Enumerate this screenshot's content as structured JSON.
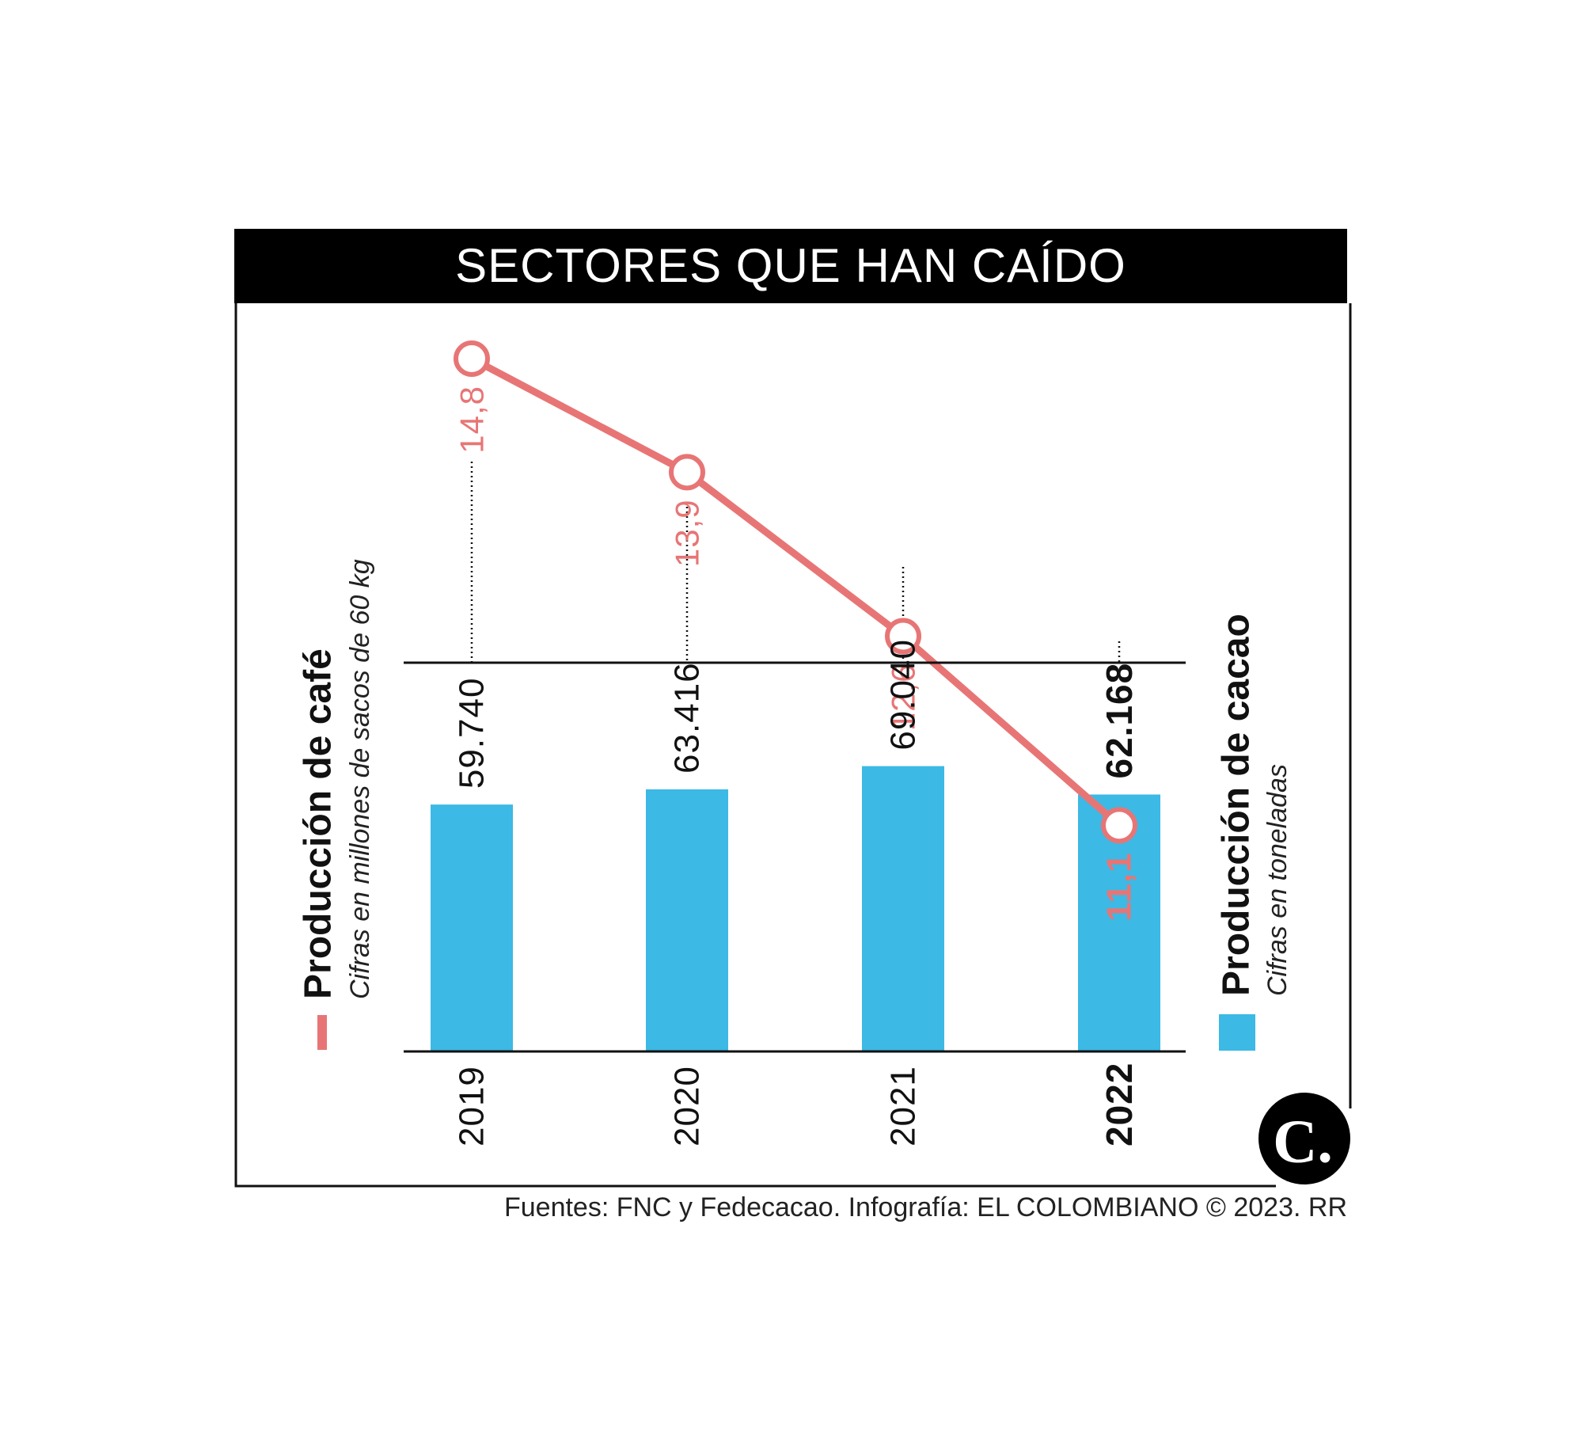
{
  "title": "SECTORES QUE HAN CAÍDO",
  "source": "Fuentes: FNC y Fedecacao. Infografía: EL COLOMBIANO © 2023. RR",
  "legend": {
    "coffee": {
      "title": "Producción de café",
      "subtitle": "Cifras en millones de sacos de 60 kg",
      "color": "#e87575"
    },
    "cocoa": {
      "title": "Producción de cacao",
      "subtitle": "Cifras en toneladas",
      "color": "#3cb9e5"
    }
  },
  "logo_text": "C.",
  "chart_data": {
    "type": "bar",
    "categories": [
      "2019",
      "2020",
      "2021",
      "2022"
    ],
    "highlight_category": "2022",
    "series": [
      {
        "name": "Producción de café",
        "kind": "line",
        "unit": "Cifras en millones de sacos de 60 kg",
        "values": [
          14.8,
          13.9,
          12.6,
          11.1
        ],
        "labels": [
          "14,8",
          "13,9",
          "12,6",
          "11,1"
        ],
        "color": "#e87575"
      },
      {
        "name": "Producción de cacao",
        "kind": "bar",
        "unit": "Cifras en toneladas",
        "values": [
          59740,
          63416,
          69040,
          62168
        ],
        "labels": [
          "59.740",
          "63.416",
          "69.040",
          "62.168"
        ],
        "color": "#3cb9e5"
      }
    ]
  }
}
